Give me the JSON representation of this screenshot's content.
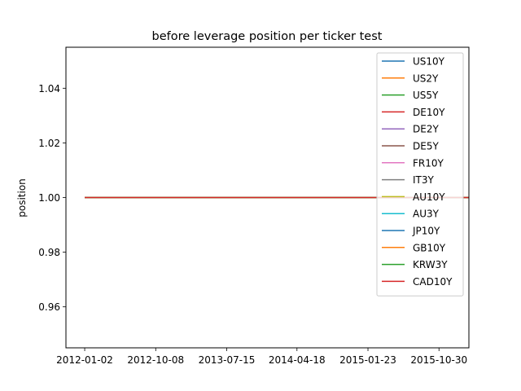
{
  "chart_data": {
    "type": "line",
    "title": "before leverage position per ticker test",
    "xlabel": "",
    "ylabel": "position",
    "x": [
      "2012-01-02",
      "2016-06-30"
    ],
    "xlim": [
      "2011-10-20",
      "2016-02-25"
    ],
    "ylim": [
      0.945,
      1.055
    ],
    "x_ticks": [
      "2012-01-02",
      "2012-10-08",
      "2013-07-15",
      "2014-04-18",
      "2015-01-23",
      "2015-10-30"
    ],
    "y_ticks": [
      0.96,
      0.98,
      1.0,
      1.02,
      1.04
    ],
    "y_tick_labels": [
      "0.96",
      "0.98",
      "1.00",
      "1.02",
      "1.04"
    ],
    "grid": false,
    "legend_position": "upper-right",
    "series": [
      {
        "name": "US10Y",
        "color": "#1f77b4",
        "values": [
          1.0,
          1.0
        ]
      },
      {
        "name": "US2Y",
        "color": "#ff7f0e",
        "values": [
          1.0,
          1.0
        ]
      },
      {
        "name": "US5Y",
        "color": "#2ca02c",
        "values": [
          1.0,
          1.0
        ]
      },
      {
        "name": "DE10Y",
        "color": "#d62728",
        "values": [
          1.0,
          1.0
        ]
      },
      {
        "name": "DE2Y",
        "color": "#9467bd",
        "values": [
          1.0,
          1.0
        ]
      },
      {
        "name": "DE5Y",
        "color": "#8c564b",
        "values": [
          1.0,
          1.0
        ]
      },
      {
        "name": "FR10Y",
        "color": "#e377c2",
        "values": [
          1.0,
          1.0
        ]
      },
      {
        "name": "IT3Y",
        "color": "#7f7f7f",
        "values": [
          1.0,
          1.0
        ]
      },
      {
        "name": "AU10Y",
        "color": "#bcbd22",
        "values": [
          1.0,
          1.0
        ]
      },
      {
        "name": "AU3Y",
        "color": "#17becf",
        "values": [
          1.0,
          1.0
        ]
      },
      {
        "name": "JP10Y",
        "color": "#1f77b4",
        "values": [
          1.0,
          1.0
        ]
      },
      {
        "name": "GB10Y",
        "color": "#ff7f0e",
        "values": [
          1.0,
          1.0
        ]
      },
      {
        "name": "KRW3Y",
        "color": "#2ca02c",
        "values": [
          1.0,
          1.0
        ]
      },
      {
        "name": "CAD10Y",
        "color": "#d62728",
        "values": [
          1.0,
          1.0
        ]
      }
    ]
  }
}
